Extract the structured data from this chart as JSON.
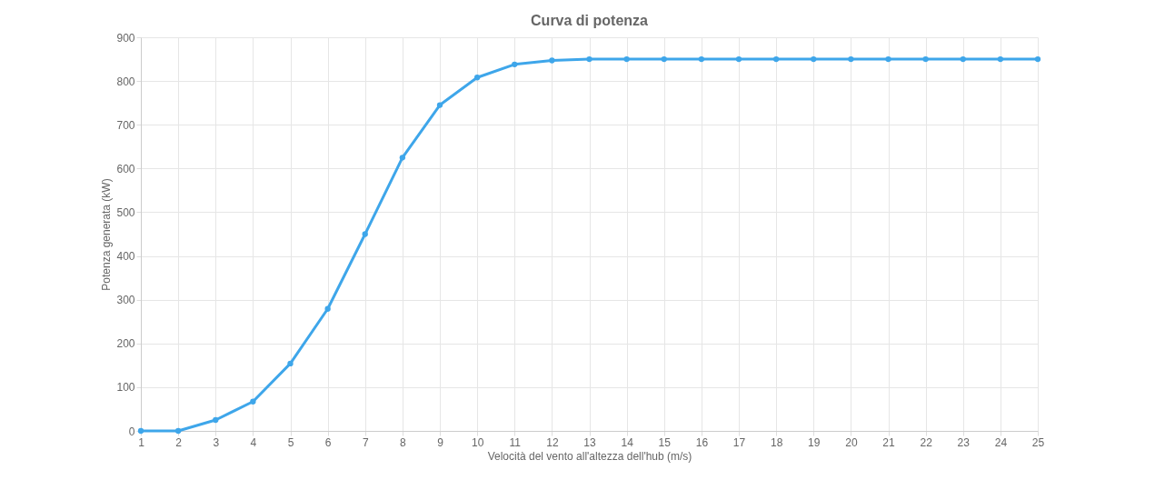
{
  "chart_data": {
    "type": "line",
    "title": "Curva di potenza",
    "xlabel": "Velocità del vento all'altezza dell'hub (m/s)",
    "ylabel": "Potenza generata (kW)",
    "x": [
      1,
      2,
      3,
      4,
      5,
      6,
      7,
      8,
      9,
      10,
      11,
      12,
      13,
      14,
      15,
      16,
      17,
      18,
      19,
      20,
      21,
      22,
      23,
      24,
      25
    ],
    "series": [
      {
        "color": "#3ea6ea",
        "values": [
          0,
          0,
          25,
          67,
          154,
          279,
          450,
          625,
          745,
          808,
          838,
          847,
          850,
          850,
          850,
          850,
          850,
          850,
          850,
          850,
          850,
          850,
          850,
          850,
          850
        ]
      }
    ],
    "xlim": [
      1,
      25
    ],
    "xticks": [
      1,
      2,
      3,
      4,
      5,
      6,
      7,
      8,
      9,
      10,
      11,
      12,
      13,
      14,
      15,
      16,
      17,
      18,
      19,
      20,
      21,
      22,
      23,
      24,
      25
    ],
    "ylim": [
      0,
      900
    ],
    "yticks": [
      0,
      100,
      200,
      300,
      400,
      500,
      600,
      700,
      800,
      900
    ],
    "grid": true,
    "marker": "circle",
    "line_style": "solid"
  }
}
